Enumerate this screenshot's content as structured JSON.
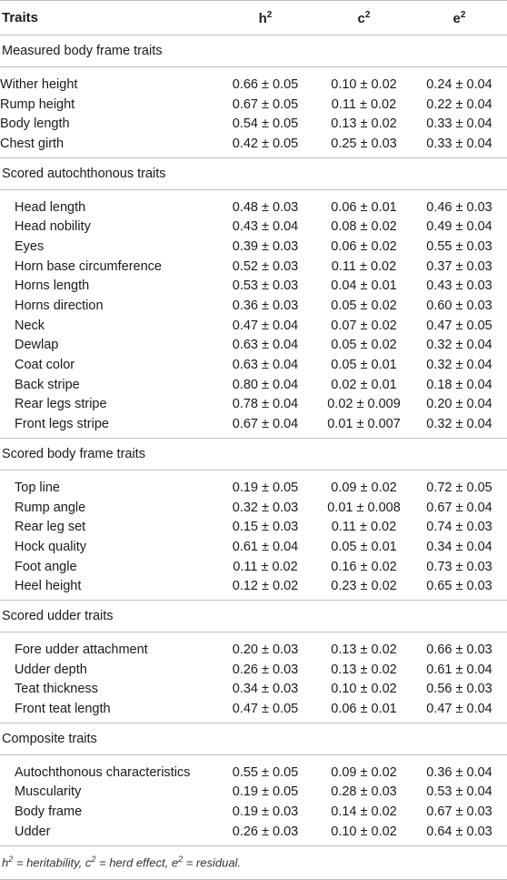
{
  "header": {
    "traits": "Traits",
    "h2_base": "h",
    "c2_base": "c",
    "e2_base": "e",
    "sup": "2"
  },
  "groups": [
    {
      "title": "Measured body frame traits",
      "rows": [
        {
          "trait": "Wither height",
          "h2": "0.66 ± 0.05",
          "c2": "0.10 ± 0.02",
          "e2": "0.24 ± 0.04"
        },
        {
          "trait": "Rump height",
          "h2": "0.67 ± 0.05",
          "c2": "0.11 ± 0.02",
          "e2": "0.22 ± 0.04"
        },
        {
          "trait": "Body length",
          "h2": "0.54 ± 0.05",
          "c2": "0.13 ± 0.02",
          "e2": "0.33 ± 0.04"
        },
        {
          "trait": "Chest girth",
          "h2": "0.42 ± 0.05",
          "c2": "0.25 ± 0.03",
          "e2": "0.33 ± 0.04"
        }
      ]
    },
    {
      "title": "Scored autochthonous traits",
      "rows": [
        {
          "trait": "Head length",
          "h2": "0.48 ± 0.03",
          "c2": "0.06 ± 0.01",
          "e2": "0.46 ± 0.03"
        },
        {
          "trait": "Head nobility",
          "h2": "0.43 ± 0.04",
          "c2": "0.08 ± 0.02",
          "e2": "0.49 ± 0.04"
        },
        {
          "trait": "Eyes",
          "h2": "0.39 ± 0.03",
          "c2": "0.06 ± 0.02",
          "e2": "0.55 ± 0.03"
        },
        {
          "trait": "Horn base circumference",
          "h2": "0.52 ± 0.03",
          "c2": "0.11 ± 0.02",
          "e2": "0.37 ± 0.03"
        },
        {
          "trait": "Horns length",
          "h2": "0.53 ± 0.03",
          "c2": "0.04 ± 0.01",
          "e2": "0.43 ± 0.03"
        },
        {
          "trait": "Horns direction",
          "h2": "0.36 ± 0.03",
          "c2": "0.05 ± 0.02",
          "e2": "0.60 ± 0.03"
        },
        {
          "trait": "Neck",
          "h2": "0.47 ± 0.04",
          "c2": "0.07 ± 0.02",
          "e2": "0.47 ± 0.05"
        },
        {
          "trait": "Dewlap",
          "h2": "0.63 ± 0.04",
          "c2": "0.05 ± 0.02",
          "e2": "0.32 ± 0.04"
        },
        {
          "trait": "Coat color",
          "h2": "0.63 ± 0.04",
          "c2": "0.05 ± 0.01",
          "e2": "0.32 ± 0.04"
        },
        {
          "trait": "Back stripe",
          "h2": "0.80 ± 0.04",
          "c2": "0.02 ± 0.01",
          "e2": "0.18 ± 0.04"
        },
        {
          "trait": "Rear legs stripe",
          "h2": "0.78 ± 0.04",
          "c2": "0.02 ± 0.009",
          "e2": "0.20 ± 0.04"
        },
        {
          "trait": "Front legs stripe",
          "h2": "0.67 ± 0.04",
          "c2": "0.01 ± 0.007",
          "e2": "0.32 ± 0.04"
        }
      ]
    },
    {
      "title": "Scored body frame traits",
      "rows": [
        {
          "trait": "Top line",
          "h2": "0.19 ± 0.05",
          "c2": "0.09 ± 0.02",
          "e2": "0.72 ± 0.05"
        },
        {
          "trait": "Rump angle",
          "h2": "0.32 ± 0.03",
          "c2": "0.01 ± 0.008",
          "e2": "0.67 ± 0.04"
        },
        {
          "trait": "Rear leg set",
          "h2": "0.15 ± 0.03",
          "c2": "0.11 ± 0.02",
          "e2": "0.74 ± 0.03"
        },
        {
          "trait": "Hock quality",
          "h2": "0.61 ± 0.04",
          "c2": "0.05 ± 0.01",
          "e2": "0.34 ± 0.04"
        },
        {
          "trait": "Foot angle",
          "h2": "0.11 ± 0.02",
          "c2": "0.16 ± 0.02",
          "e2": "0.73 ± 0.03"
        },
        {
          "trait": "Heel height",
          "h2": "0.12 ± 0.02",
          "c2": "0.23 ± 0.02",
          "e2": "0.65 ± 0.03"
        }
      ]
    },
    {
      "title": "Scored udder traits",
      "rows": [
        {
          "trait": "Fore udder attachment",
          "h2": "0.20 ± 0.03",
          "c2": "0.13 ± 0.02",
          "e2": "0.66 ± 0.03"
        },
        {
          "trait": "Udder depth",
          "h2": "0.26 ± 0.03",
          "c2": "0.13 ± 0.02",
          "e2": "0.61 ± 0.04"
        },
        {
          "trait": "Teat thickness",
          "h2": "0.34 ± 0.03",
          "c2": "0.10 ± 0.02",
          "e2": "0.56 ± 0.03"
        },
        {
          "trait": "Front teat length",
          "h2": "0.47 ± 0.05",
          "c2": "0.06 ± 0.01",
          "e2": "0.47 ± 0.04"
        }
      ]
    },
    {
      "title": "Composite traits",
      "rows": [
        {
          "trait": "Autochthonous characteristics",
          "h2": "0.55 ± 0.05",
          "c2": "0.09 ± 0.02",
          "e2": "0.36 ± 0.04"
        },
        {
          "trait": "Muscularity",
          "h2": "0.19 ± 0.05",
          "c2": "0.28 ± 0.03",
          "e2": "0.53 ± 0.04"
        },
        {
          "trait": "Body frame",
          "h2": "0.19 ± 0.03",
          "c2": "0.14 ± 0.02",
          "e2": "0.67 ± 0.03"
        },
        {
          "trait": "Udder",
          "h2": "0.26 ± 0.03",
          "c2": "0.10 ± 0.02",
          "e2": "0.64 ± 0.03"
        }
      ]
    }
  ],
  "footnote": {
    "h": "h",
    "h_text": " = heritability, ",
    "c": "c",
    "c_text": " = herd effect, ",
    "e": "e",
    "e_text": " = residual.",
    "sup": "2"
  }
}
